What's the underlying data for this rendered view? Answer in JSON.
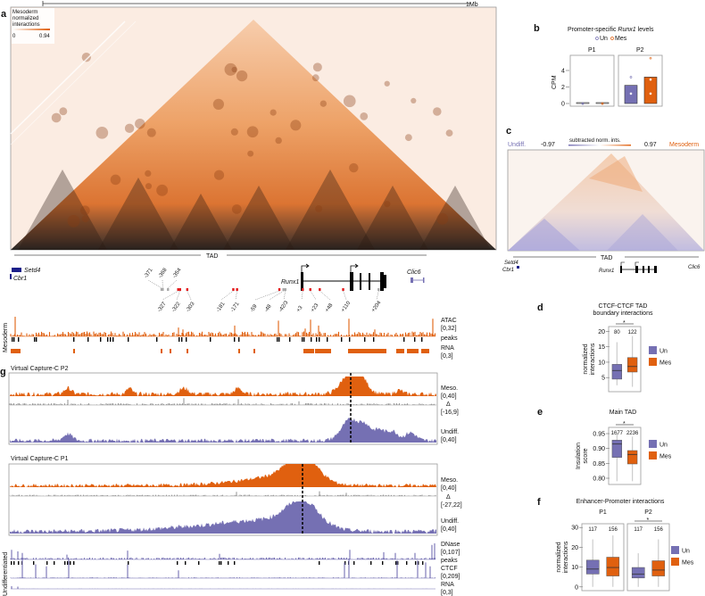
{
  "colors": {
    "meso": "#e0600f",
    "undiff": "#7570b3",
    "delta": "#9a9a9a",
    "gene": "#1b1f8a"
  },
  "scale_bar": {
    "label": "1Mb"
  },
  "panel_a": {
    "letter": "a",
    "legend_title": "Mesoderm",
    "legend_sub1": "normalized",
    "legend_sub2": "interactions",
    "legend_min": "0",
    "legend_max": "0.94",
    "tad_label": "TAD"
  },
  "genes": {
    "setd4": "Setd4",
    "cbr1": "Cbr1",
    "runx1": "Runx1",
    "clic6": "Clic6"
  },
  "enhancers": [
    {
      "label": "-371",
      "kb": -371,
      "active": false,
      "upper": true
    },
    {
      "label": "-368",
      "kb": -368,
      "active": false,
      "upper": true
    },
    {
      "label": "-354",
      "kb": -354,
      "active": false,
      "upper": true
    },
    {
      "label": "-327",
      "kb": -327,
      "active": true,
      "upper": false
    },
    {
      "label": "-322",
      "kb": -322,
      "active": true,
      "upper": false
    },
    {
      "label": "-303",
      "kb": -303,
      "active": true,
      "upper": false
    },
    {
      "label": "-181",
      "kb": -181,
      "active": true,
      "upper": false
    },
    {
      "label": "-171",
      "kb": -171,
      "active": true,
      "upper": false
    },
    {
      "label": "-59",
      "kb": -59,
      "active": true,
      "upper": false
    },
    {
      "label": "-48",
      "kb": -48,
      "active": false,
      "upper": false
    },
    {
      "label": "-42/3",
      "kb": -43,
      "active": false,
      "upper": false
    },
    {
      "label": "+3",
      "kb": 3,
      "active": true,
      "upper": false
    },
    {
      "label": "+23",
      "kb": 23,
      "active": true,
      "upper": false
    },
    {
      "label": "+48",
      "kb": 48,
      "active": true,
      "upper": false
    },
    {
      "label": "+110",
      "kb": 110,
      "active": true,
      "upper": false
    },
    {
      "label": "+204",
      "kb": 204,
      "active": false,
      "upper": false
    }
  ],
  "mesoderm_tracks": {
    "group": "Mesoderm",
    "atac": "ATAC",
    "atac_range": "[0,32]",
    "peaks": "peaks",
    "rna": "RNA",
    "rna_range": "[0,3]"
  },
  "panel_g": {
    "letter": "g",
    "p2": {
      "title": "Virtual Capture-C P2",
      "meso": "Meso.",
      "meso_range": "[0,40]",
      "delta": "Δ",
      "delta_range": "[-16,9]",
      "undiff": "Undiff.",
      "undiff_range": "[0,40]"
    },
    "p1": {
      "title": "Virtual Capture-C P1",
      "meso": "Meso.",
      "meso_range": "[0,40]",
      "delta": "Δ",
      "delta_range": "[-27,22]",
      "undiff": "Undiff.",
      "undiff_range": "[0,40]"
    }
  },
  "undiff_tracks": {
    "group": "Undifferentiated",
    "dnase": "DNase",
    "dnase_range": "[0,107]",
    "peaks": "peaks",
    "ctcf": "CTCF",
    "ctcf_range": "[0,209]",
    "rna": "RNA",
    "rna_range": "[0,3]"
  },
  "panel_c": {
    "letter": "c",
    "left_label": "Undiff.",
    "min": "-0.97",
    "title": "subtracted norm. ints.",
    "max": "0.97",
    "right_label": "Mesoderm",
    "tad_label": "TAD"
  },
  "chart_data": [
    {
      "id": "b",
      "type": "bar",
      "letter": "b",
      "title_pre": "Promoter-specific ",
      "title_gene": "Runx1",
      "title_post": " levels",
      "legend": [
        "Un",
        "Mes"
      ],
      "ylabel": "CPM",
      "ylim": [
        0,
        5.5
      ],
      "yticks": [
        "0",
        "2",
        "4"
      ],
      "facets": [
        "P1",
        "P2"
      ],
      "series": [
        {
          "facet": "P1",
          "group": "Un",
          "value": 0,
          "points": [
            0,
            0
          ]
        },
        {
          "facet": "P1",
          "group": "Mes",
          "value": 0,
          "points": [
            0,
            0
          ]
        },
        {
          "facet": "P2",
          "group": "Un",
          "value": 2.2,
          "points": [
            1.2,
            3.2
          ]
        },
        {
          "facet": "P2",
          "group": "Mes",
          "value": 3.2,
          "points": [
            1.2,
            2.9,
            5.5
          ]
        }
      ]
    },
    {
      "id": "d",
      "type": "box",
      "letter": "d",
      "title1": "CTCF-CTCF TAD",
      "title2": "boundary interactions",
      "ylabel1": "normalized",
      "ylabel2": "interactions",
      "ylim": [
        1,
        21
      ],
      "yticks": [
        "5",
        "10",
        "15",
        "20"
      ],
      "signif": "*",
      "legend": [
        "Un",
        "Mes"
      ],
      "facets": [
        {
          "name": "",
          "boxes": [
            {
              "group": "Un",
              "n": "80",
              "min": 2.5,
              "q1": 4.5,
              "median": 7.3,
              "q3": 9.3,
              "max": 16.5
            },
            {
              "group": "Mes",
              "n": "122",
              "min": 2,
              "q1": 6.8,
              "median": 8.6,
              "q3": 11.5,
              "max": 18.5
            }
          ]
        }
      ]
    },
    {
      "id": "e",
      "type": "box",
      "letter": "e",
      "title1": "Main TAD",
      "title2": "",
      "ylabel1": "Insulation",
      "ylabel2": "score",
      "ylim": [
        0.785,
        0.965
      ],
      "yticks": [
        "0.80",
        "0.85",
        "0.90",
        "0.95"
      ],
      "signif": "*",
      "legend": [
        "Un",
        "Mes"
      ],
      "facets": [
        {
          "name": "",
          "boxes": [
            {
              "group": "Un",
              "n": "1677",
              "min": 0.79,
              "q1": 0.87,
              "median": 0.915,
              "q3": 0.928,
              "max": 0.955
            },
            {
              "group": "Mes",
              "n": "2236",
              "min": 0.79,
              "q1": 0.848,
              "median": 0.88,
              "q3": 0.893,
              "max": 0.94
            }
          ]
        }
      ]
    },
    {
      "id": "f",
      "type": "box",
      "letter": "f",
      "title1": "Enhancer-Promoter interactions",
      "title2": "",
      "ylabel1": "normalized",
      "ylabel2": "interactions",
      "ylim": [
        -1,
        31
      ],
      "yticks": [
        "0",
        "10",
        "20",
        "30"
      ],
      "legend": [
        "Un",
        "Mes"
      ],
      "facets": [
        {
          "name": "P1",
          "signif": "",
          "boxes": [
            {
              "group": "Un",
              "n": "117",
              "min": 0,
              "q1": 6.5,
              "median": 9,
              "q3": 13.5,
              "max": 24
            },
            {
              "group": "Mes",
              "n": "156",
              "min": 0,
              "q1": 5.5,
              "median": 9.8,
              "q3": 15,
              "max": 26
            }
          ]
        },
        {
          "name": "P2",
          "signif": "*",
          "boxes": [
            {
              "group": "Un",
              "n": "117",
              "min": 0,
              "q1": 4.5,
              "median": 6.5,
              "q3": 9.8,
              "max": 17
            },
            {
              "group": "Mes",
              "n": "156",
              "min": 0,
              "q1": 5.5,
              "median": 8.5,
              "q3": 13.2,
              "max": 24
            }
          ]
        }
      ]
    }
  ]
}
